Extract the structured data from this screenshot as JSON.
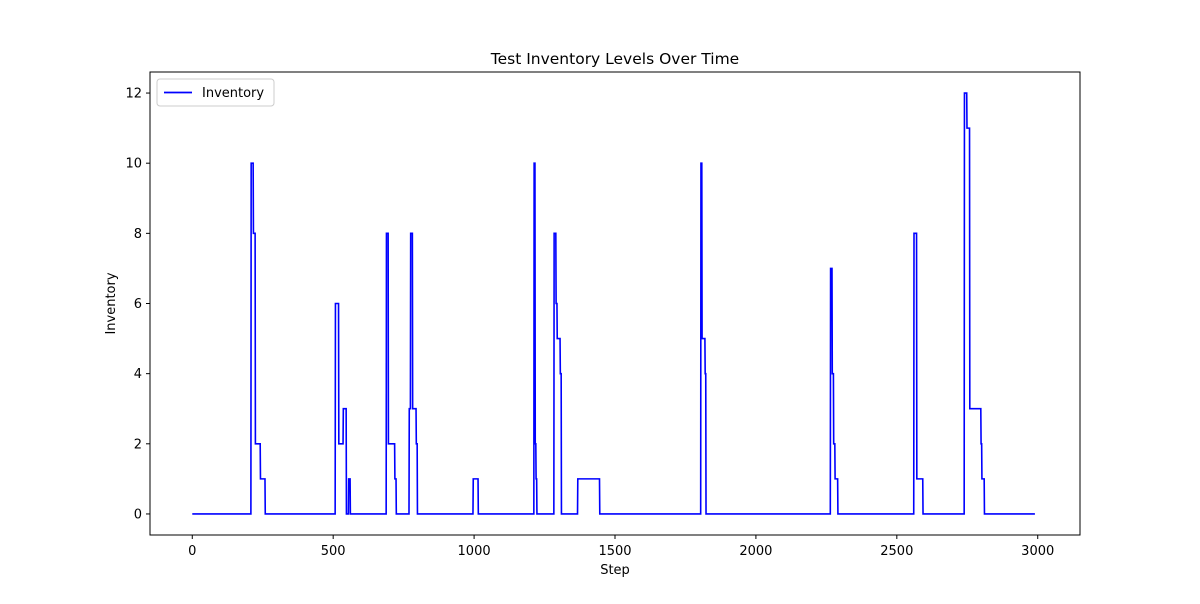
{
  "chart_data": {
    "type": "line",
    "title": "Test Inventory Levels Over Time",
    "xlabel": "Step",
    "ylabel": "Inventory",
    "xlim": [
      -150,
      3150
    ],
    "ylim": [
      -0.6,
      12.6
    ],
    "xticks": [
      0,
      500,
      1000,
      1500,
      2000,
      2500,
      3000
    ],
    "yticks": [
      0,
      2,
      4,
      6,
      8,
      10,
      12
    ],
    "grid": false,
    "legend": "upper-left",
    "line_style": "steps",
    "series": [
      {
        "name": "Inventory",
        "color": "#0000ff",
        "x": [
          0,
          208,
          209,
          216,
          217,
          223,
          224,
          241,
          242,
          258,
          259,
          507,
          508,
          519,
          520,
          535,
          536,
          546,
          547,
          554,
          555,
          560,
          561,
          688,
          689,
          695,
          696,
          718,
          719,
          723,
          724,
          769,
          770,
          774,
          775,
          781,
          782,
          794,
          795,
          798,
          799,
          996,
          997,
          1014,
          1015,
          1212,
          1213,
          1216,
          1217,
          1219,
          1220,
          1222,
          1223,
          1283,
          1284,
          1290,
          1291,
          1294,
          1295,
          1305,
          1306,
          1309,
          1310,
          1367,
          1368,
          1445,
          1446,
          1804,
          1805,
          1808,
          1809,
          1819,
          1820,
          1822,
          1823,
          2264,
          2265,
          2270,
          2271,
          2275,
          2276,
          2280,
          2281,
          2290,
          2291,
          2560,
          2561,
          2570,
          2571,
          2592,
          2593,
          2739,
          2740,
          2748,
          2749,
          2758,
          2759,
          2798,
          2799,
          2801,
          2802,
          2810,
          2811,
          2990
        ],
        "y": [
          0,
          0,
          10,
          10,
          8,
          8,
          2,
          2,
          1,
          1,
          0,
          0,
          6,
          6,
          2,
          2,
          3,
          3,
          0,
          0,
          1,
          1,
          0,
          0,
          8,
          8,
          2,
          2,
          1,
          1,
          0,
          0,
          3,
          3,
          8,
          8,
          3,
          3,
          2,
          2,
          0,
          0,
          1,
          1,
          0,
          0,
          10,
          10,
          2,
          2,
          1,
          1,
          0,
          0,
          8,
          8,
          6,
          6,
          5,
          5,
          4,
          4,
          0,
          0,
          1,
          1,
          0,
          0,
          10,
          10,
          5,
          5,
          4,
          4,
          0,
          0,
          7,
          7,
          4,
          4,
          2,
          2,
          1,
          1,
          0,
          0,
          8,
          8,
          1,
          1,
          0,
          0,
          12,
          12,
          11,
          11,
          3,
          3,
          2,
          2,
          1,
          1,
          0,
          0
        ]
      }
    ]
  }
}
